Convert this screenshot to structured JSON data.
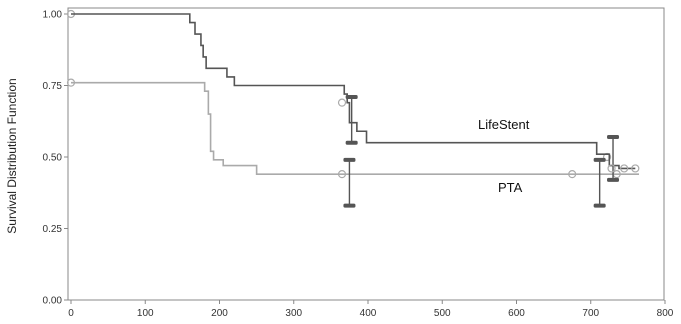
{
  "chart_data": {
    "type": "line",
    "title": "",
    "xlabel": "",
    "ylabel": "Survival Distribution Function",
    "xlim": [
      0,
      800
    ],
    "ylim": [
      0,
      1.0
    ],
    "xticks": [
      0,
      100,
      200,
      300,
      400,
      500,
      600,
      700,
      800
    ],
    "yticks": [
      "0.00",
      "0.25",
      "0.50",
      "0.75",
      "1.00"
    ],
    "grid": false,
    "series": [
      {
        "name": "LifeStent",
        "color": "#555555",
        "step": [
          [
            0,
            1.0
          ],
          [
            155,
            1.0
          ],
          [
            160,
            0.97
          ],
          [
            167,
            0.93
          ],
          [
            175,
            0.89
          ],
          [
            178,
            0.85
          ],
          [
            182,
            0.81
          ],
          [
            210,
            0.78
          ],
          [
            220,
            0.75
          ],
          [
            365,
            0.75
          ],
          [
            368,
            0.72
          ],
          [
            372,
            0.69
          ],
          [
            375,
            0.62
          ],
          [
            385,
            0.59
          ],
          [
            398,
            0.55
          ],
          [
            705,
            0.55
          ],
          [
            708,
            0.51
          ],
          [
            722,
            0.51
          ],
          [
            725,
            0.47
          ],
          [
            738,
            0.46
          ],
          [
            760,
            0.46
          ]
        ],
        "censored": [
          [
            728,
            0.46
          ],
          [
            745,
            0.46
          ],
          [
            760,
            0.46
          ]
        ],
        "error_bars": [
          {
            "x": 378,
            "y": 0.63,
            "low": 0.55,
            "high": 0.71
          },
          {
            "x": 712,
            "y": 0.49,
            "low": 0.33,
            "high": 0.49
          },
          {
            "x": 730,
            "y": 0.5,
            "low": 0.42,
            "high": 0.57
          }
        ]
      },
      {
        "name": "PTA",
        "color": "#aaaaaa",
        "step": [
          [
            0,
            0.76
          ],
          [
            175,
            0.76
          ],
          [
            180,
            0.73
          ],
          [
            185,
            0.65
          ],
          [
            188,
            0.52
          ],
          [
            192,
            0.49
          ],
          [
            205,
            0.47
          ],
          [
            248,
            0.47
          ],
          [
            250,
            0.44
          ],
          [
            765,
            0.44
          ]
        ],
        "censored": [
          [
            0,
            1.0
          ],
          [
            0,
            0.76
          ],
          [
            365,
            0.69
          ],
          [
            365,
            0.44
          ],
          [
            675,
            0.44
          ],
          [
            722,
            0.5
          ],
          [
            735,
            0.44
          ]
        ],
        "error_bars": [
          {
            "x": 375,
            "y": 0.44,
            "low": 0.33,
            "high": 0.49
          }
        ]
      }
    ]
  }
}
